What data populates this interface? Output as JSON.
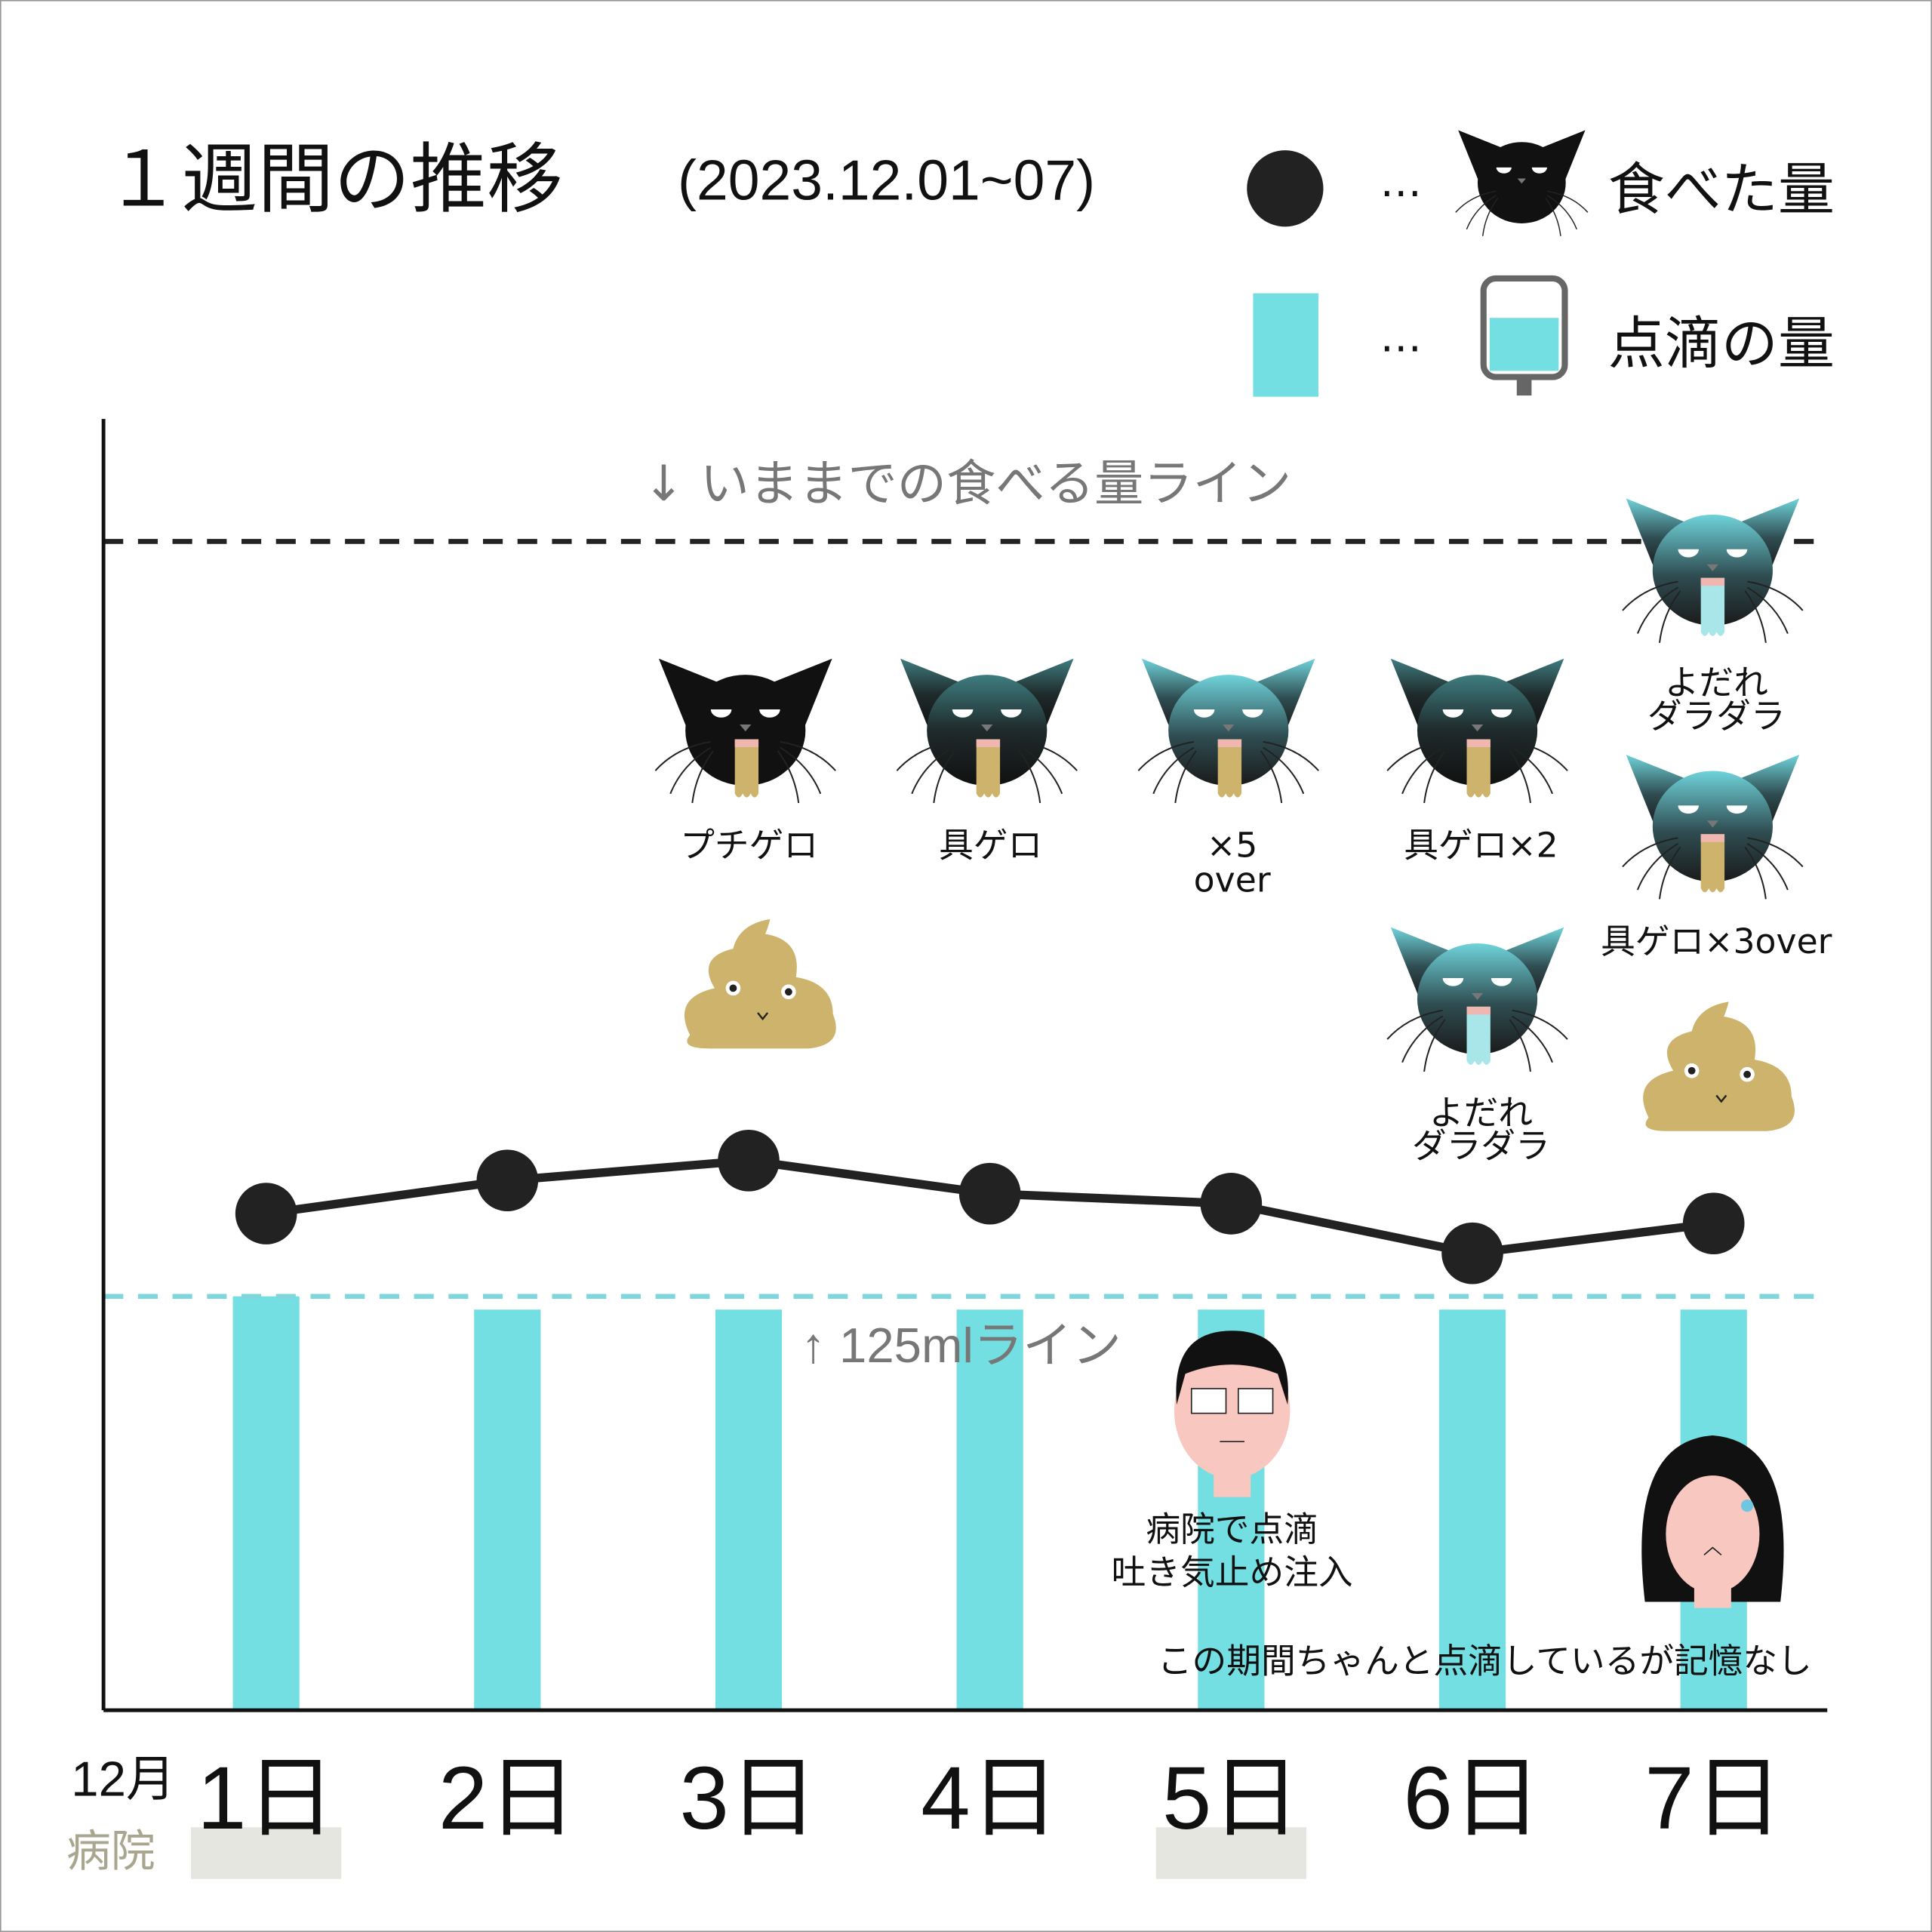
{
  "chart_data": {
    "type": "bar_line",
    "title": "１週間の推移",
    "subtitle": "(2023.12.01~07)",
    "categories": [
      "1日",
      "2日",
      "3日",
      "4日",
      "5日",
      "6日",
      "7日"
    ],
    "month_label": "12月",
    "hospital_label": "病院",
    "hospital_days": [
      0,
      4
    ],
    "series": [
      {
        "name": "食べた量",
        "type": "line",
        "color": "#222222",
        "values": [
          150,
          160,
          166,
          156,
          153,
          138,
          147
        ]
      },
      {
        "name": "点滴の量",
        "type": "bar",
        "color": "#73dfe2",
        "values": [
          125,
          121,
          121,
          121,
          121,
          121,
          121
        ]
      }
    ],
    "ylim": [
      0,
      390
    ],
    "reference_lines": [
      {
        "value": 353,
        "label": "↓ いままでの食べる量ライン",
        "color": "#222222"
      },
      {
        "value": 125,
        "label": "↑ 125mlライン",
        "color": "#7fd6dd"
      }
    ],
    "legend_separator": "…",
    "annotations": [
      [
        "プチゲロ"
      ],
      [
        "具ゲロ"
      ],
      [
        "×5",
        "over"
      ],
      [
        "具ゲロ×2"
      ],
      [
        "よだれ",
        "ダラダラ"
      ],
      [
        "よだれ",
        "ダラダラ"
      ],
      [
        "具ゲロ×3over"
      ],
      [
        "病院で点滴",
        "吐き気止め注入"
      ],
      [
        "この期間ちゃんと点滴しているが記憶なし"
      ]
    ]
  }
}
